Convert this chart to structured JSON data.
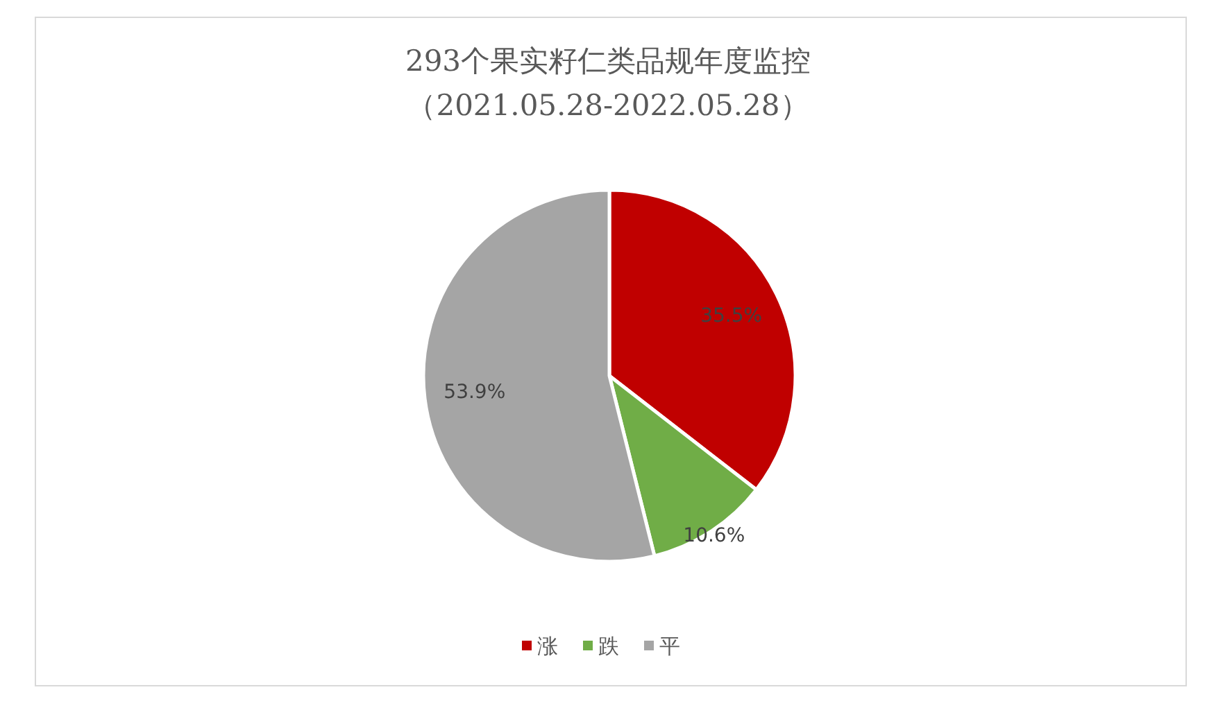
{
  "chart_data": {
    "type": "pie",
    "title": "293个果实籽仁类品规年度监控",
    "subtitle": "（2021.05.28-2022.05.28）",
    "categories": [
      "涨",
      "跌",
      "平"
    ],
    "values": [
      35.5,
      10.6,
      53.9
    ],
    "colors": [
      "#c00000",
      "#70ad47",
      "#a5a5a5"
    ],
    "value_labels": [
      "35.5%",
      "10.6%",
      "53.9%"
    ],
    "legend": "bottom"
  }
}
